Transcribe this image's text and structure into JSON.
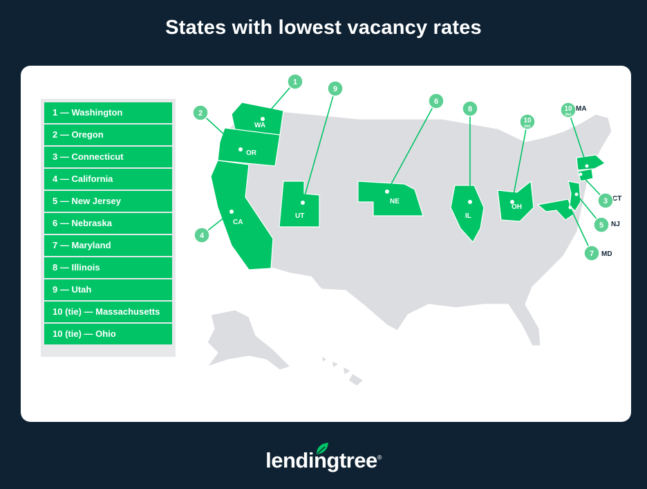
{
  "title": "States with lowest vacancy rates",
  "legend": [
    "1 — Washington",
    "2 — Oregon",
    "3 — Connecticut",
    "4 — California",
    "5 — New Jersey",
    "6 — Nebraska",
    "7 — Maryland",
    "8 — Illinois",
    "9 — Utah",
    "10 (tie) — Massachusetts",
    "10 (tie) — Ohio"
  ],
  "states": [
    {
      "abbr": "WA",
      "rank": "1"
    },
    {
      "abbr": "OR",
      "rank": "2"
    },
    {
      "abbr": "CT",
      "rank": "3"
    },
    {
      "abbr": "CA",
      "rank": "4"
    },
    {
      "abbr": "NJ",
      "rank": "5"
    },
    {
      "abbr": "NE",
      "rank": "6"
    },
    {
      "abbr": "MD",
      "rank": "7"
    },
    {
      "abbr": "IL",
      "rank": "8"
    },
    {
      "abbr": "UT",
      "rank": "9"
    },
    {
      "abbr": "MA",
      "rank": "10",
      "tie": "(tie)"
    },
    {
      "abbr": "OH",
      "rank": "10",
      "tie": "(tie)"
    }
  ],
  "colors": {
    "highlight": "#00c466",
    "marker": "#5ccf93",
    "base_state": "#dcdde0",
    "background": "#0f2233"
  },
  "brand": {
    "name": "lendingtree",
    "mark": "®"
  }
}
